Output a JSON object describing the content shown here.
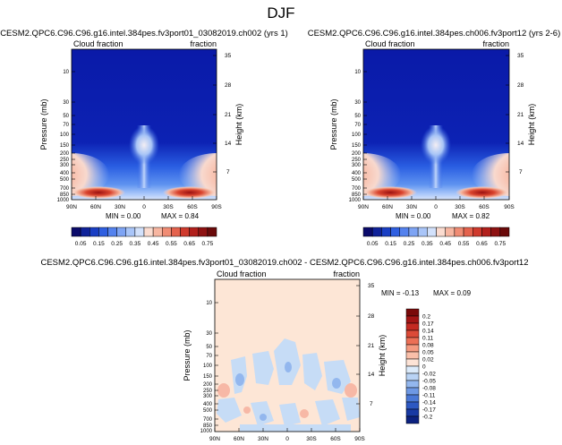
{
  "figure_title": "DJF",
  "colors": {
    "panel1_low": "#0a1aa8",
    "panel1_high": "#8b1010",
    "diff_base": "#fde6d6",
    "diff_neg": "#c6dcf6",
    "diff_pos": "#f7b8a6"
  },
  "chart_data": [
    {
      "type": "heatmap",
      "title": "CESM2.QPC6.C96.C96.g16.intel.384pes.fv3port01_03082019.ch002 (yrs 1)",
      "corner_left": "Cloud fraction",
      "corner_right": "fraction",
      "ylabel": "Pressure (mb)",
      "y2label": "Height (km)",
      "x_ticks": [
        "90N",
        "60N",
        "30N",
        "0",
        "30S",
        "60S",
        "90S"
      ],
      "y_ticks": [
        "10",
        "30",
        "50",
        "70",
        "100",
        "150",
        "200",
        "250",
        "300",
        "400",
        "500",
        "700",
        "850",
        "1000"
      ],
      "y2_ticks": [
        "35",
        "28",
        "21",
        "14",
        "7"
      ],
      "min_label": "MIN =  0.00",
      "max_label": "MAX =  0.84",
      "min": 0.0,
      "max": 0.84
    },
    {
      "type": "heatmap",
      "title": "CESM2.QPC6.C96.C96.g16.intel.384pes.ch006.fv3port12 (yrs 2-6)",
      "corner_left": "Cloud fraction",
      "corner_right": "fraction",
      "ylabel": "Pressure (mb)",
      "y2label": "Height (km)",
      "x_ticks": [
        "90N",
        "60N",
        "30N",
        "0",
        "30S",
        "60S",
        "90S"
      ],
      "y_ticks": [
        "10",
        "30",
        "50",
        "70",
        "100",
        "150",
        "200",
        "250",
        "300",
        "400",
        "500",
        "700",
        "850",
        "1000"
      ],
      "y2_ticks": [
        "35",
        "28",
        "21",
        "14",
        "7"
      ],
      "min_label": "MIN =  0.00",
      "max_label": "MAX =  0.82",
      "min": 0.0,
      "max": 0.82
    },
    {
      "type": "heatmap",
      "title": "CESM2.QPC6.C96.C96.g16.intel.384pes.fv3port01_03082019.ch002 - CESM2.QPC6.C96.C96.g16.intel.384pes.ch006.fv3port12",
      "corner_left": "Cloud fraction",
      "corner_right": "fraction",
      "ylabel": "Pressure (mb)",
      "y2label": "Height (km)",
      "x_ticks": [
        "90N",
        "60N",
        "30N",
        "0",
        "30S",
        "60S",
        "90S"
      ],
      "y_ticks": [
        "10",
        "30",
        "50",
        "70",
        "100",
        "150",
        "200",
        "250",
        "300",
        "400",
        "500",
        "700",
        "850",
        "1000"
      ],
      "y2_ticks": [
        "35",
        "28",
        "21",
        "14",
        "7"
      ],
      "min_label": "MIN = -0.13",
      "max_label": "MAX =  0.09",
      "min": -0.13,
      "max": 0.09
    }
  ],
  "colorbar_top": {
    "labels": [
      "0.05",
      "0.15",
      "0.25",
      "0.35",
      "0.45",
      "0.55",
      "0.65",
      "0.75"
    ],
    "colors": [
      "#0b0b6b",
      "#10239a",
      "#1a3fc4",
      "#2f5fe0",
      "#5482ee",
      "#7ea4f4",
      "#a9c5f8",
      "#d2e1fb",
      "#fbdcd0",
      "#f7b6a1",
      "#f08c74",
      "#e4624d",
      "#cf3a2d",
      "#b2201c",
      "#8e1212",
      "#6a0a0a"
    ]
  },
  "colorbar_diff": {
    "labels": [
      "0.2",
      "0.17",
      "0.14",
      "0.11",
      "0.08",
      "0.05",
      "0.02",
      "0",
      "-0.02",
      "-0.05",
      "-0.08",
      "-0.11",
      "-0.14",
      "-0.17",
      "-0.2"
    ],
    "colors": [
      "#7a0a0a",
      "#a31515",
      "#c42a22",
      "#dc4a37",
      "#ec6f55",
      "#f59a80",
      "#fabfa9",
      "#fde3d6",
      "#dcebfb",
      "#b9d3f5",
      "#93b7ee",
      "#6e98e4",
      "#4a78d6",
      "#2d58c2",
      "#183aa4",
      "#0c2280"
    ]
  }
}
